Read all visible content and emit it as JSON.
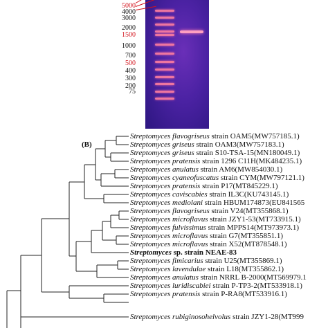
{
  "panel_a": {
    "ladder_labels": [
      {
        "text": "5000",
        "color": "#d3131c"
      },
      {
        "text": "4000",
        "color": "#111111"
      },
      {
        "text": "3000",
        "color": "#111111"
      },
      {
        "text": "2000",
        "color": "#111111"
      },
      {
        "text": "1500",
        "color": "#d3131c"
      },
      {
        "text": "1000",
        "color": "#111111"
      },
      {
        "text": "700",
        "color": "#111111"
      },
      {
        "text": "500",
        "color": "#d3131c"
      },
      {
        "text": "400",
        "color": "#111111"
      },
      {
        "text": "300",
        "color": "#111111"
      },
      {
        "text": "200",
        "color": "#111111"
      },
      {
        "text": "75",
        "color": "#111111"
      }
    ],
    "colors": {
      "gel": "#4b22a3",
      "band": "#ff7fa0",
      "marker": "#d3131c"
    }
  },
  "panel_b": {
    "label": "(B)",
    "leaves": [
      {
        "genus": "Streptomyces",
        "species": "flavogriseus",
        "rest": "strain OAM5(MW757185.1)"
      },
      {
        "genus": "Streptomyces",
        "species": "griseus",
        "rest": "strain OAM3(MW757183.1)"
      },
      {
        "genus": "Streptomyces",
        "species": "griseus",
        "rest": "strain S10-TSA-15(MN180049.1)"
      },
      {
        "genus": "Streptomyces",
        "species": "pratensis",
        "rest": "strain 1296 C11H(MK484235.1)"
      },
      {
        "genus": "Streptomyces",
        "species": "anulatus",
        "rest": "strain AM6(MW854030.1)"
      },
      {
        "genus": "Streptomyces",
        "species": "cyaneofuscatus",
        "rest": "strain CYM(MW797121.1)"
      },
      {
        "genus": "Streptomyces",
        "species": "pratensis",
        "rest": "strain P17(MT845229.1)"
      },
      {
        "genus": "Streptomyces",
        "species": "caviscabies",
        "rest": "strain IL3C(KU743145.1)"
      },
      {
        "genus": "Streptomyces",
        "species": "mediolani",
        "rest": "strain HBUM174873(EU841565"
      },
      {
        "genus": "Streptomyces",
        "species": "flavogriseus",
        "rest": "strain V24(MT355868.1)"
      },
      {
        "genus": "Streptomyces",
        "species": "microflavus",
        "rest": "strain JZY1-53(MT733915.1)"
      },
      {
        "genus": "Streptomyces",
        "species": "fulvissimus",
        "rest": "strain MPPS14(MT973973.1)"
      },
      {
        "genus": "Streptomyces",
        "species": "microflavus",
        "rest": "strain G7(MT355851.1)"
      },
      {
        "genus": "Streptomyces",
        "species": "microflavus",
        "rest": "strain X52(MT878548.1)"
      },
      {
        "genus": "Streptomyces",
        "species": "",
        "rest": "sp. strain NEAE-83",
        "highlight": true
      },
      {
        "genus": "Streptomyces",
        "species": "fimicarius",
        "rest": "strain U25(MT355869.1)"
      },
      {
        "genus": "Streptomyces",
        "species": "lavendulae",
        "rest": "strain L18(MT355862.1)"
      },
      {
        "genus": "Streptomyces",
        "species": "anulatus",
        "rest": "strain NRRL B-2000(MT569979.1"
      },
      {
        "genus": "Streptomyces",
        "species": "luridiscabiei",
        "rest": "strain P-TP3-2(MT533918.1)"
      },
      {
        "genus": "Streptomyces",
        "species": "pratensis",
        "rest": "strain P-RA8(MT533916.1)"
      },
      {
        "genus": "Streptomyces",
        "species": "rubiginosohelvolus",
        "rest": "strain JZY1-28(MT999"
      }
    ]
  }
}
